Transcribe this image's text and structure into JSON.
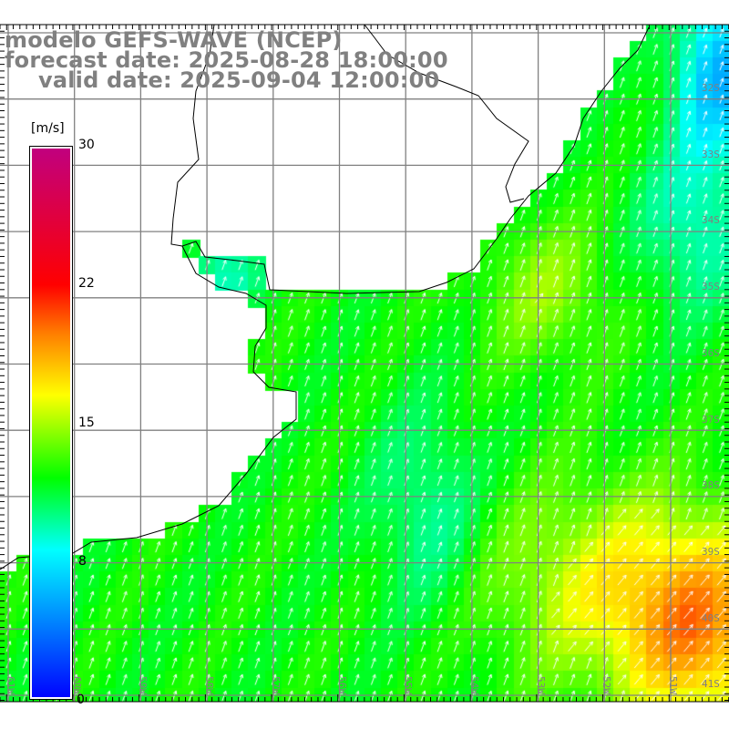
{
  "title": {
    "model": "modelo GEFS-WAVE (NCEP)",
    "forecast": "forecast date: 2025-08-28 18:00:00",
    "valid": "valid date: 2025-09-04 12:00:00"
  },
  "colorbar": {
    "unit": "[m/s]",
    "ticks": [
      "30",
      "22",
      "15",
      "8",
      "0"
    ],
    "range": [
      0,
      30
    ],
    "stops": [
      "#0000ff",
      "#00ffff",
      "#00ff00",
      "#ffff00",
      "#ff8000",
      "#ff0000",
      "#c00080"
    ]
  },
  "latitude_labels": [
    "32S",
    "33S",
    "34S",
    "35S",
    "36S",
    "37S",
    "38S",
    "39S",
    "40S",
    "41S"
  ],
  "longitude_labels": [
    "61W",
    "60W",
    "59W",
    "58W",
    "57W",
    "56W",
    "55W",
    "54W",
    "53W",
    "52W",
    "51W"
  ],
  "colors": {
    "grid": "#808080",
    "coast": "#000000",
    "arrow": "#ffffff",
    "title": "#808080"
  }
}
